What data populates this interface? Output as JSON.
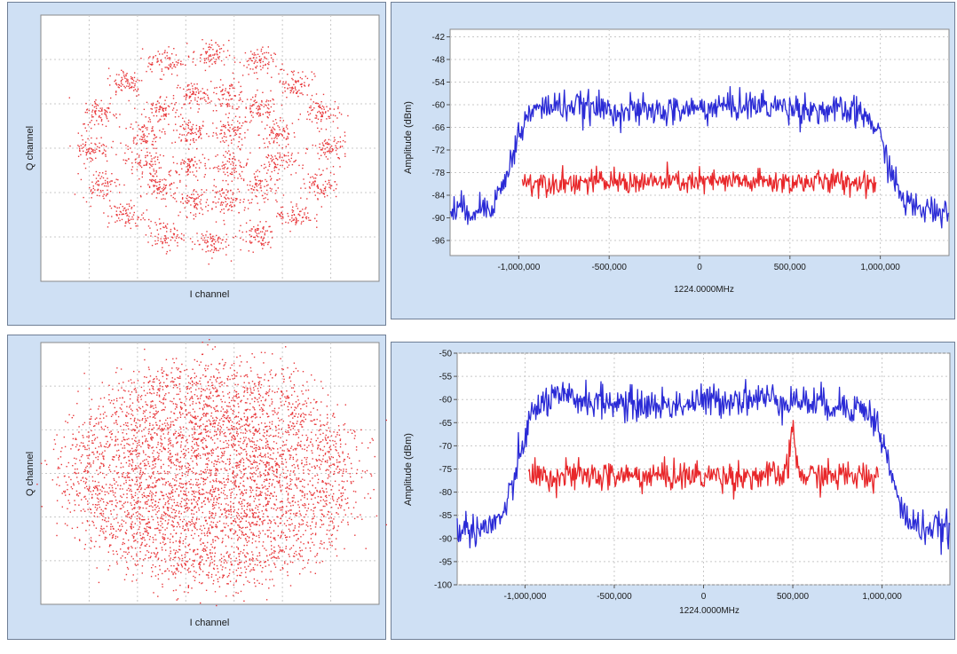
{
  "chart_data": [
    {
      "type": "scatter",
      "xlabel": "I channel",
      "ylabel": "Q channel",
      "title": "",
      "grid": true,
      "constellation": "32-APSK",
      "rings": [
        {
          "radius": 0.18,
          "points": 4
        },
        {
          "radius": 0.42,
          "points": 12
        },
        {
          "radius": 0.72,
          "points": 16
        }
      ],
      "point_spread": 0.055,
      "color": "#e8373a"
    },
    {
      "type": "line",
      "ylabel": "Amplitude (dBm)",
      "xlabel": "1224.0000MHz",
      "title": "",
      "grid": true,
      "xlim": [
        -1380000,
        1380000
      ],
      "ylim": [
        -100,
        -40
      ],
      "y_ticks": [
        -42,
        -48,
        -54,
        -60,
        -66,
        -72,
        -78,
        -84,
        -90,
        -96
      ],
      "x_ticks": [
        -1000000,
        -500000,
        0,
        500000,
        1000000
      ],
      "x_tick_labels": [
        "-1,000,000",
        "-500,000",
        "0",
        "500,000",
        "1,000,000"
      ],
      "series": [
        {
          "color": "#2b2bd6",
          "kind": "spectrum",
          "level": -61,
          "edge_low": -1040000,
          "edge_high": 1040000,
          "floor": -88,
          "noise": 2.0,
          "x_start": -1380000,
          "x_end": 1380000
        },
        {
          "color": "#e8272a",
          "kind": "flat",
          "level": -80.5,
          "noise": 1.6,
          "x_start": -980000,
          "x_end": 980000
        }
      ]
    },
    {
      "type": "scatter",
      "xlabel": "I channel",
      "ylabel": "Q channel",
      "title": "",
      "grid": true,
      "constellation": "32-APSK (noisy)",
      "rings": [
        {
          "radius": 0.18,
          "points": 4
        },
        {
          "radius": 0.42,
          "points": 12
        },
        {
          "radius": 0.72,
          "points": 16
        }
      ],
      "point_spread": 0.12,
      "color": "#e8373a"
    },
    {
      "type": "line",
      "ylabel": "Amplitude (dBm)",
      "xlabel": "1224.0000MHz",
      "title": "",
      "grid": true,
      "xlim": [
        -1380000,
        1380000
      ],
      "ylim": [
        -100,
        -50
      ],
      "y_ticks": [
        -50,
        -55,
        -60,
        -65,
        -70,
        -75,
        -80,
        -85,
        -90,
        -95,
        -100
      ],
      "x_ticks": [
        -1000000,
        -500000,
        0,
        500000,
        1000000
      ],
      "x_tick_labels": [
        "-1,000,000",
        "-500,000",
        "0",
        "500,000",
        "1,000,000"
      ],
      "series": [
        {
          "color": "#2b2bd6",
          "kind": "spectrum",
          "level": -60.5,
          "edge_low": -1040000,
          "edge_high": 1040000,
          "floor": -88,
          "noise": 1.8,
          "x_start": -1380000,
          "x_end": 1380000
        },
        {
          "color": "#e8272a",
          "kind": "flat",
          "level": -76.5,
          "noise": 1.6,
          "x_start": -980000,
          "x_end": 980000,
          "spike_x": 500000,
          "spike_level": -67
        }
      ]
    }
  ]
}
